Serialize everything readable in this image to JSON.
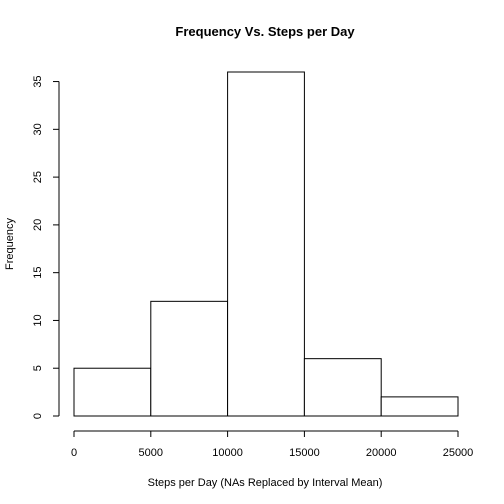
{
  "chart_data": {
    "type": "bar",
    "subtype": "histogram",
    "title": "Frequency Vs. Steps per Day",
    "xlabel": "Steps per Day (NAs Replaced by Interval Mean)",
    "ylabel": "Frequency",
    "bins": [
      {
        "start": 0,
        "end": 5000,
        "value": 5
      },
      {
        "start": 5000,
        "end": 10000,
        "value": 12
      },
      {
        "start": 10000,
        "end": 15000,
        "value": 36
      },
      {
        "start": 15000,
        "end": 20000,
        "value": 6
      },
      {
        "start": 20000,
        "end": 25000,
        "value": 2
      }
    ],
    "xlim": [
      0,
      25000
    ],
    "ylim": [
      0,
      36
    ],
    "x_ticks": [
      0,
      5000,
      10000,
      15000,
      20000,
      25000
    ],
    "y_ticks": [
      0,
      5,
      10,
      15,
      20,
      25,
      30,
      35
    ],
    "grid": false,
    "legend": "none",
    "bar_fill": "#ffffff",
    "bar_stroke": "#000000"
  }
}
